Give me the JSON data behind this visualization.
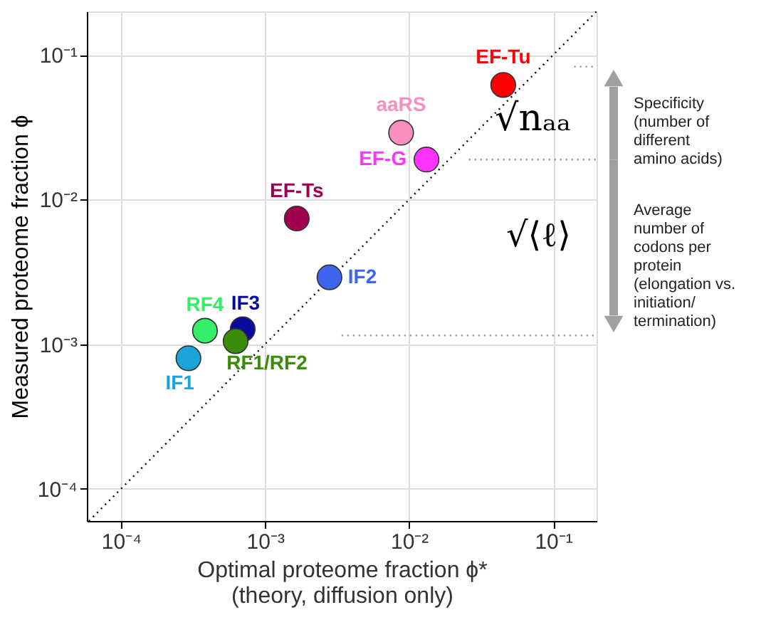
{
  "chart_data": {
    "type": "scatter",
    "xlabel": "Optimal proteome fraction  ϕ*\n(theory, diffusion only)",
    "ylabel": "Measured proteome fraction  ϕ",
    "xlim": [
      5.8e-05,
      0.2
    ],
    "ylim": [
      6e-05,
      0.2
    ],
    "xticks": [
      {
        "value": 0.0001,
        "label": "10⁻⁴"
      },
      {
        "value": 0.001,
        "label": "10⁻³"
      },
      {
        "value": 0.01,
        "label": "10⁻²"
      },
      {
        "value": 0.1,
        "label": "10⁻¹"
      }
    ],
    "yticks": [
      {
        "value": 0.0001,
        "label": "10⁻⁴"
      },
      {
        "value": 0.001,
        "label": "10⁻³"
      },
      {
        "value": 0.01,
        "label": "10⁻²"
      },
      {
        "value": 0.1,
        "label": "10⁻¹"
      }
    ],
    "log": "xy",
    "grid": true,
    "marker": "circle",
    "series": [
      {
        "type": "line",
        "color": "#000000",
        "line_style": "dotted",
        "marker": "none",
        "x": [
          6e-05,
          0.2
        ],
        "values": [
          6e-05,
          0.2
        ]
      },
      {
        "type": "line",
        "color": "#888888",
        "line_style": "dotted",
        "marker": "none",
        "x": [
          0.14,
          0.2
        ],
        "values": [
          0.083,
          0.083
        ]
      },
      {
        "type": "line",
        "color": "#888888",
        "line_style": "dotted",
        "marker": "none",
        "x": [
          0.026,
          0.2
        ],
        "values": [
          0.0189,
          0.0189
        ]
      },
      {
        "type": "line",
        "color": "#888888",
        "line_style": "dotted",
        "marker": "none",
        "x": [
          0.0034,
          0.2
        ],
        "values": [
          0.00115,
          0.00115
        ]
      },
      {
        "name": "EF-Tu",
        "color": "#ff0000",
        "x": [
          0.045
        ],
        "values": [
          0.062
        ]
      },
      {
        "name": "aaRS",
        "color": "#f78fc0",
        "x": [
          0.0088
        ],
        "values": [
          0.029
        ]
      },
      {
        "name": "EF-G",
        "color": "#ff33ff",
        "x": [
          0.0132
        ],
        "values": [
          0.0189
        ]
      },
      {
        "name": "EF-Ts",
        "color": "#a0004f",
        "x": [
          0.00166
        ],
        "values": [
          0.0074
        ]
      },
      {
        "name": "IF2",
        "color": "#3f64f0",
        "x": [
          0.0028
        ],
        "values": [
          0.0029
        ]
      },
      {
        "name": "IF3",
        "color": "#0a0a9e",
        "x": [
          0.0007
        ],
        "values": [
          0.00127
        ]
      },
      {
        "name": "RF1/RF2",
        "color": "#3c8c0a",
        "x": [
          0.000625
        ],
        "values": [
          0.00105
        ]
      },
      {
        "name": "RF4",
        "color": "#33ee66",
        "x": [
          0.000383
        ],
        "values": [
          0.00124
        ]
      },
      {
        "name": "IF1",
        "color": "#1aa4d8",
        "x": [
          0.000294
        ],
        "values": [
          0.0008
        ]
      }
    ],
    "annotations": [
      "√nₐₐ",
      "Specificity\n(number of\ndifferent\namino acids)",
      "√⟨ℓ⟩",
      "Average\nnumber of\ncodons per\nprotein\n(elongation vs.\ninitiation/\ntermination)"
    ]
  }
}
